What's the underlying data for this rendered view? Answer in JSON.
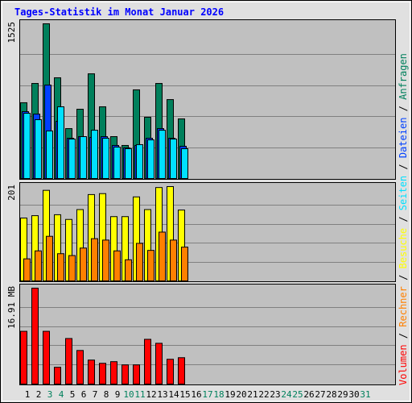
{
  "title": "Tages-Statistik im Monat Januar 2026",
  "legend_separator": " / ",
  "chart_data": [
    {
      "type": "bar",
      "ylim": [
        0,
        1525
      ],
      "yticks": [
        1525
      ],
      "series": [
        {
          "name": "Anfragen",
          "color": "#00805c",
          "values": [
            747,
            937,
            1525,
            993,
            492,
            683,
            1032,
            707,
            413,
            326,
            874,
            604,
            937,
            778,
            588,
            null,
            null,
            null,
            null,
            null,
            null,
            null,
            null,
            null,
            null,
            null,
            null,
            null,
            null,
            null,
            null
          ]
        },
        {
          "name": "Dateien",
          "color": "#0040ff",
          "values": [
            659,
            635,
            921,
            564,
            397,
            413,
            405,
            413,
            326,
            302,
            326,
            397,
            492,
            397,
            318,
            null,
            null,
            null,
            null,
            null,
            null,
            null,
            null,
            null,
            null,
            null,
            null,
            null,
            null,
            null,
            null
          ]
        },
        {
          "name": "Seiten",
          "color": "#00e0ff",
          "values": [
            643,
            580,
            469,
            707,
            389,
            413,
            476,
            397,
            310,
            294,
            334,
            381,
            476,
            389,
            294,
            null,
            null,
            null,
            null,
            null,
            null,
            null,
            null,
            null,
            null,
            null,
            null,
            null,
            null,
            null,
            null
          ]
        }
      ]
    },
    {
      "type": "bar",
      "ylim": [
        0,
        201
      ],
      "yticks": [
        201
      ],
      "series": [
        {
          "name": "Besuche",
          "color": "#ffff00",
          "values": [
            134,
            139,
            193,
            141,
            131,
            152,
            184,
            186,
            137,
            137,
            179,
            152,
            199,
            201,
            151,
            null,
            null,
            null,
            null,
            null,
            null,
            null,
            null,
            null,
            null,
            null,
            null,
            null,
            null,
            null,
            null
          ]
        },
        {
          "name": "Rechner",
          "color": "#ff8000",
          "values": [
            47,
            64,
            95,
            58,
            54,
            70,
            90,
            87,
            64,
            45,
            80,
            65,
            104,
            87,
            72,
            null,
            null,
            null,
            null,
            null,
            null,
            null,
            null,
            null,
            null,
            null,
            null,
            null,
            null,
            null,
            null
          ]
        }
      ]
    },
    {
      "type": "bar",
      "ylim": [
        0,
        16.91
      ],
      "yticks": [
        {
          "value": 16.91,
          "label": "16.91 MB"
        }
      ],
      "categories": [
        "1",
        "2",
        "3",
        "4",
        "5",
        "6",
        "7",
        "8",
        "9",
        "10",
        "11",
        "12",
        "13",
        "14",
        "15",
        "16",
        "17",
        "18",
        "19",
        "20",
        "21",
        "22",
        "23",
        "24",
        "25",
        "26",
        "27",
        "28",
        "29",
        "30",
        "31"
      ],
      "category_colors": [
        "#000000",
        "#000000",
        "#00805c",
        "#00805c",
        "#000000",
        "#000000",
        "#000000",
        "#000000",
        "#000000",
        "#00805c",
        "#00805c",
        "#000000",
        "#000000",
        "#000000",
        "#000000",
        "#000000",
        "#00805c",
        "#00805c",
        "#000000",
        "#000000",
        "#000000",
        "#000000",
        "#000000",
        "#00805c",
        "#00805c",
        "#000000",
        "#000000",
        "#000000",
        "#000000",
        "#000000",
        "#00805c"
      ],
      "series": [
        {
          "name": "Volumen",
          "color": "#ff0000",
          "values": [
            9.3,
            16.91,
            9.3,
            2.96,
            8.03,
            5.92,
            4.23,
            3.66,
            3.95,
            3.38,
            3.38,
            7.89,
            7.19,
            4.37,
            4.65,
            null,
            null,
            null,
            null,
            null,
            null,
            null,
            null,
            null,
            null,
            null,
            null,
            null,
            null,
            null,
            null
          ]
        }
      ]
    }
  ]
}
